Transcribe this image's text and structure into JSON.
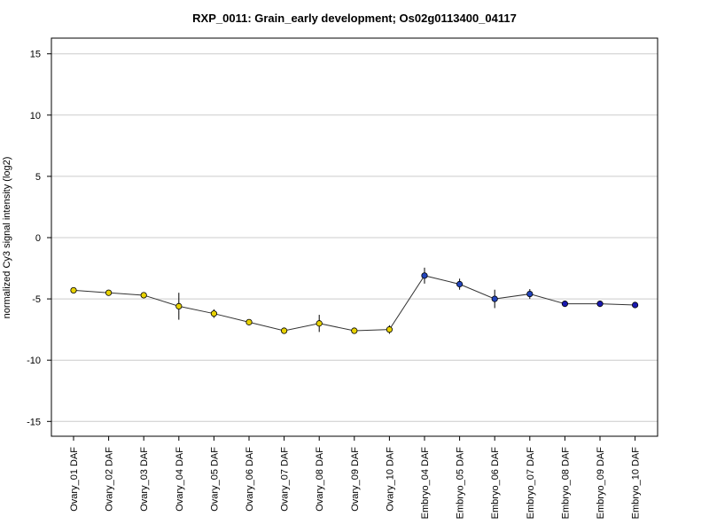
{
  "chart_data": {
    "type": "line",
    "title": "RXP_0011: Grain_early development; Os02g0113400_04117",
    "xlabel": "",
    "ylabel": "normalized Cy3 signal intensity (log2)",
    "ylim": [
      -16,
      16
    ],
    "yticks": [
      -15,
      -10,
      -5,
      0,
      5,
      10,
      15
    ],
    "grid": true,
    "categories": [
      "Ovary_01 DAF",
      "Ovary_02 DAF",
      "Ovary_03 DAF",
      "Ovary_04 DAF",
      "Ovary_05 DAF",
      "Ovary_06 DAF",
      "Ovary_07 DAF",
      "Ovary_08 DAF",
      "Ovary_09 DAF",
      "Ovary_10 DAF",
      "Embryo_04 DAF",
      "Embryo_05 DAF",
      "Embryo_06 DAF",
      "Embryo_07 DAF",
      "Embryo_08 DAF",
      "Embryo_09 DAF",
      "Embryo_10 DAF"
    ],
    "values": [
      -4.3,
      -4.5,
      -4.7,
      -5.6,
      -6.2,
      -6.9,
      -7.6,
      -7.0,
      -7.6,
      -7.5,
      -3.1,
      -3.8,
      -5.0,
      -4.6,
      -5.4,
      -5.4,
      -5.5
    ],
    "errors": [
      0.15,
      0.2,
      0.25,
      1.1,
      0.35,
      0.2,
      0.2,
      0.7,
      0.2,
      0.35,
      0.65,
      0.45,
      0.75,
      0.4,
      0.15,
      0.25,
      0.1
    ],
    "point_colors": [
      "#e8d200",
      "#e8d200",
      "#e8d200",
      "#e8d200",
      "#e8d200",
      "#e8d200",
      "#e8d200",
      "#e8d200",
      "#e8d200",
      "#e8d200",
      "#2244bb",
      "#2244bb",
      "#2244bb",
      "#2244bb",
      "#1a1ab0",
      "#1a1ab0",
      "#1a1ab0"
    ],
    "line_color": "#333333",
    "grid_color": "#cccccc"
  }
}
